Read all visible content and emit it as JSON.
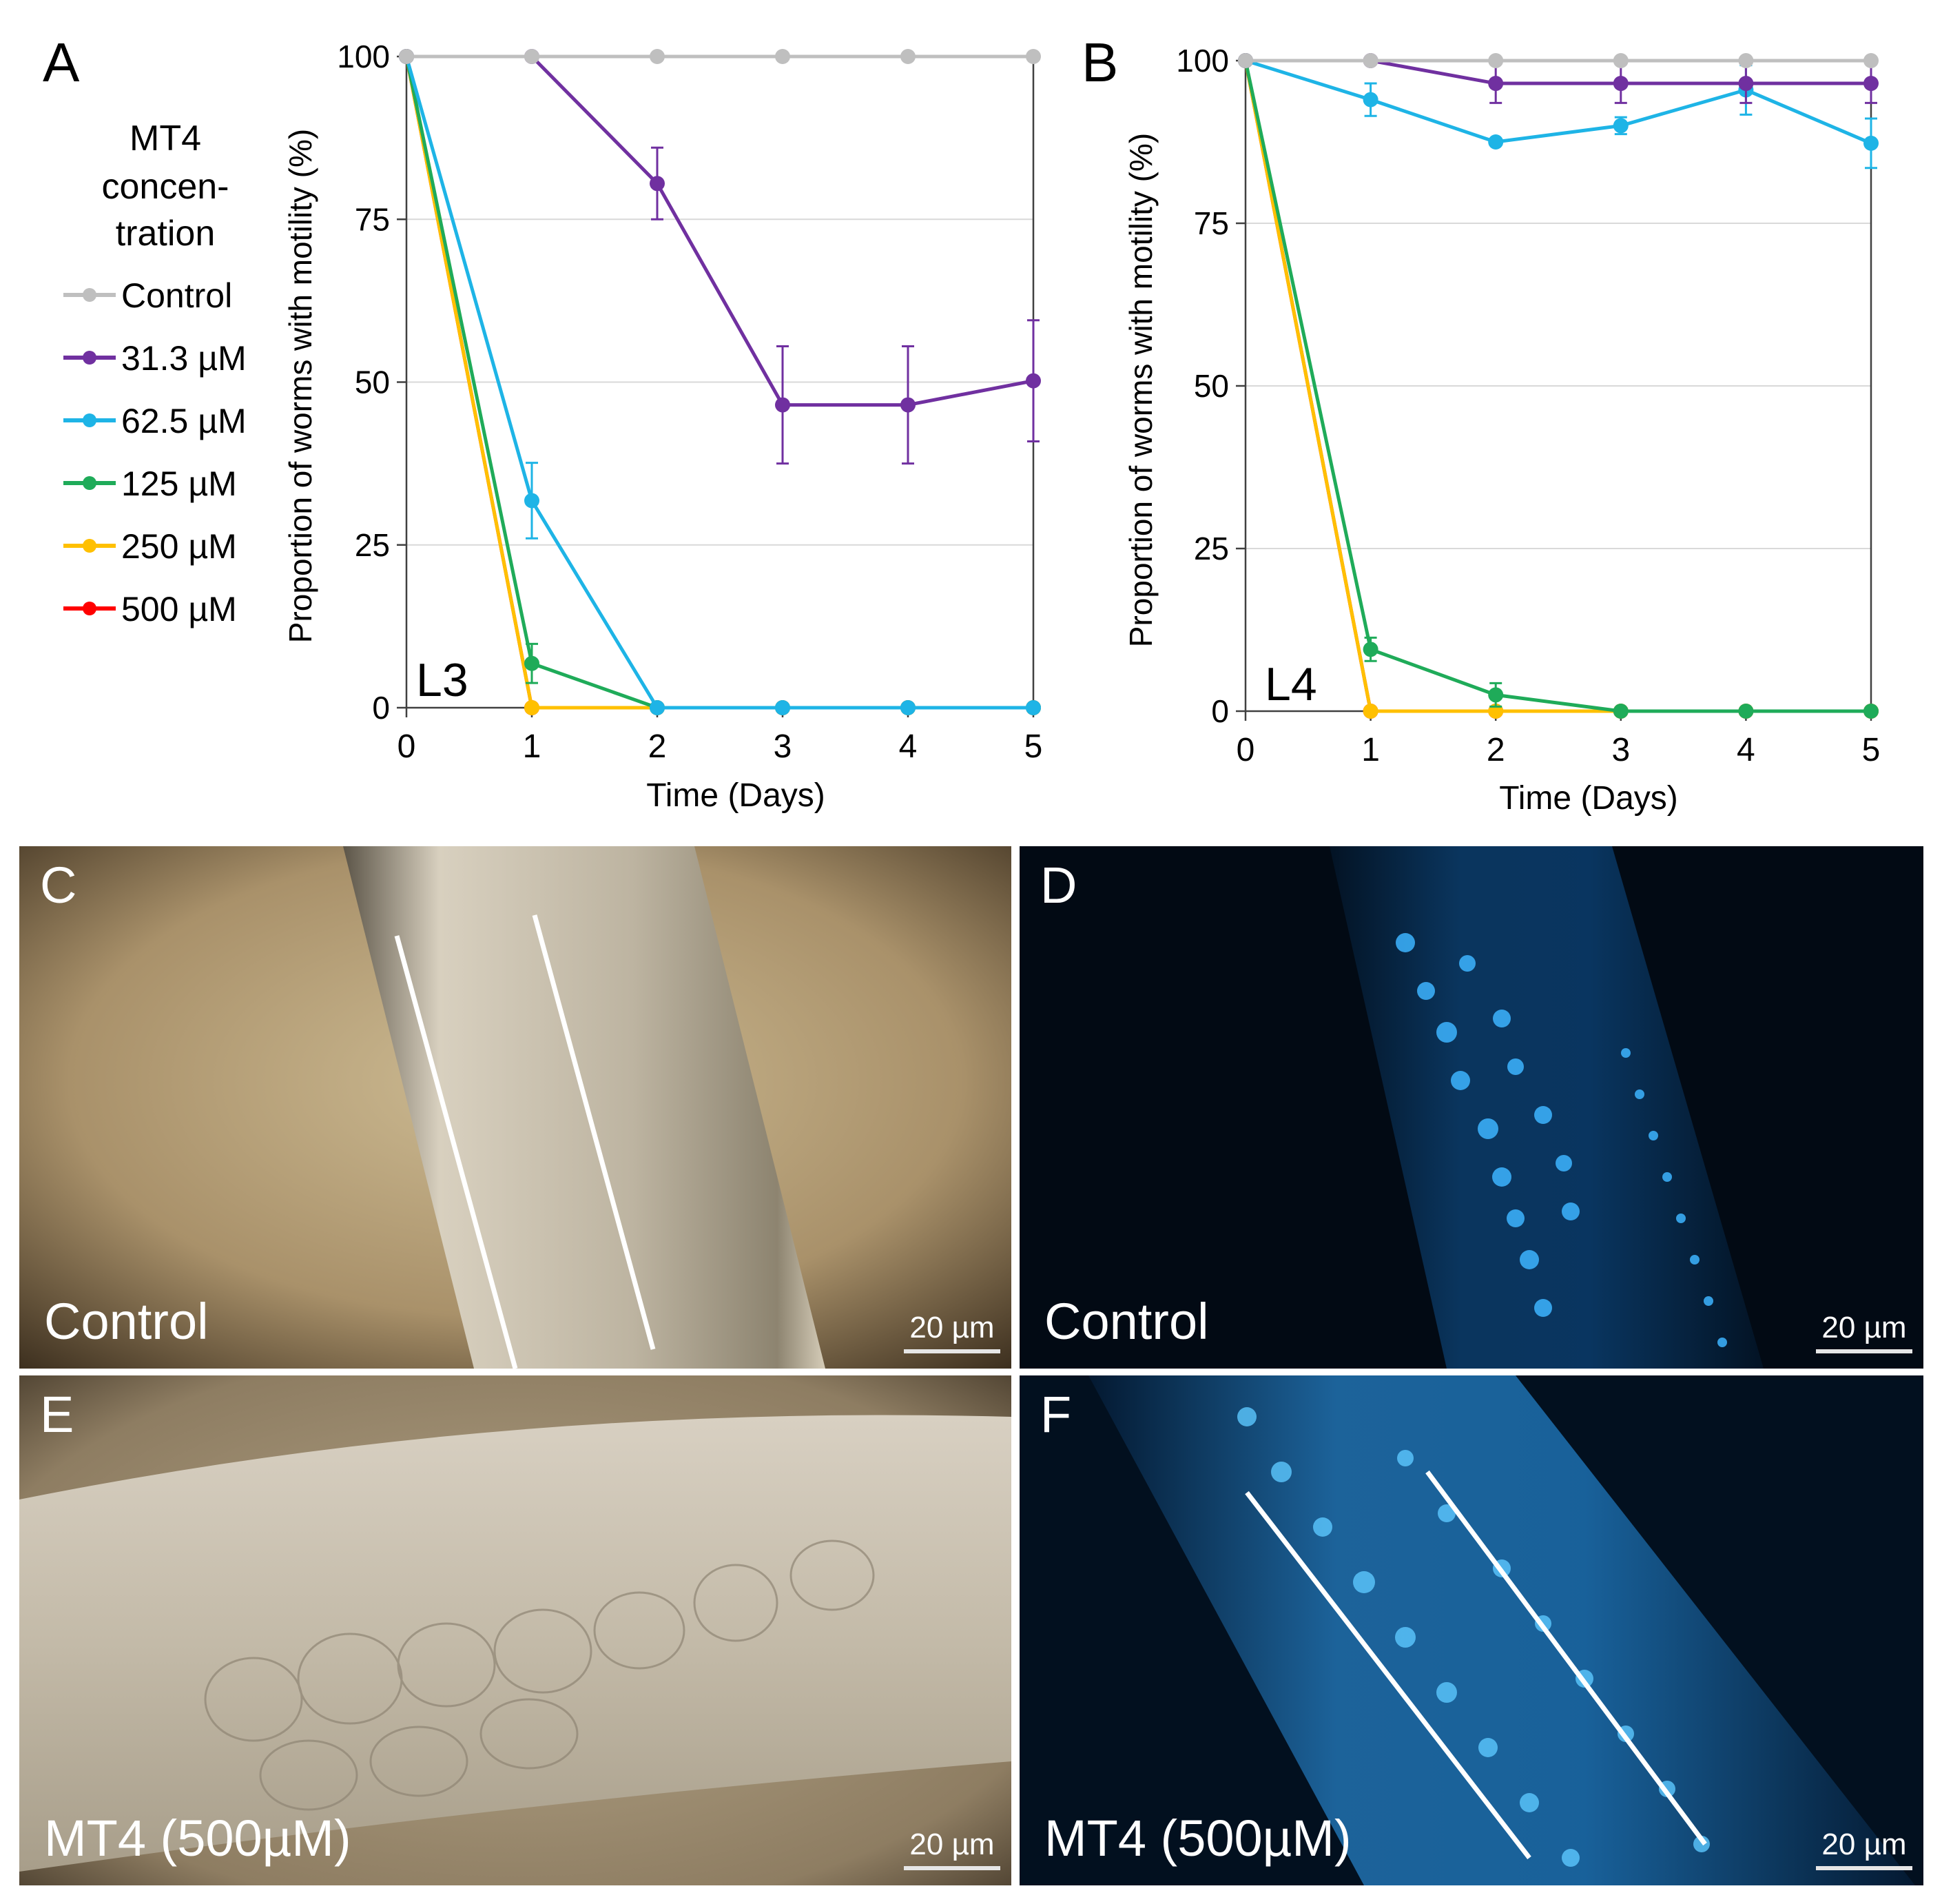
{
  "legend": {
    "title_lines": [
      "MT4",
      "concen-",
      "tration"
    ],
    "entries": [
      {
        "label": "Control",
        "color": "#bfbfbf"
      },
      {
        "label": "31.3 µM",
        "color": "#7030a0"
      },
      {
        "label": "62.5 µM",
        "color": "#1eb4e6"
      },
      {
        "label": "125 µM",
        "color": "#1fab59"
      },
      {
        "label": "250 µM",
        "color": "#ffc000"
      },
      {
        "label": "500 µM",
        "color": "#ff0000"
      }
    ]
  },
  "chart_data": [
    {
      "type": "line",
      "panel_letter": "A",
      "stage_label": "L3",
      "xlabel": "Time (Days)",
      "ylabel": "Proportion of worms with motility (%)",
      "x": [
        0,
        1,
        2,
        3,
        4,
        5
      ],
      "xlim": [
        0,
        5
      ],
      "ylim": [
        0,
        100
      ],
      "yticks": [
        0,
        25,
        50,
        75,
        100
      ],
      "grid": "horizontal",
      "series": [
        {
          "name": "Control",
          "color": "#bfbfbf",
          "values": [
            100,
            100,
            100,
            100,
            100,
            100
          ],
          "errors": [
            0,
            0,
            0,
            0,
            0,
            0
          ]
        },
        {
          "name": "31.3 µM",
          "color": "#7030a0",
          "values": [
            100,
            100,
            80.5,
            46.5,
            46.5,
            50.2
          ],
          "errors": [
            0,
            0,
            5.5,
            9,
            9,
            9.3
          ]
        },
        {
          "name": "62.5 µM",
          "color": "#1eb4e6",
          "values": [
            100,
            31.8,
            0,
            0,
            0,
            0
          ],
          "errors": [
            0,
            5.8,
            0,
            0,
            0,
            0
          ]
        },
        {
          "name": "125 µM",
          "color": "#1fab59",
          "values": [
            100,
            6.8,
            0,
            0,
            0,
            0
          ],
          "errors": [
            0,
            3,
            0,
            0,
            0,
            0
          ]
        },
        {
          "name": "250 µM",
          "color": "#ffc000",
          "values": [
            100,
            0,
            0,
            0,
            0,
            0
          ],
          "errors": [
            0,
            0,
            0,
            0,
            0,
            0
          ]
        },
        {
          "name": "500 µM",
          "color": "#ff0000",
          "values": [
            100,
            0,
            0,
            0,
            0,
            0
          ],
          "errors": [
            0,
            0,
            0,
            0,
            0,
            0
          ]
        }
      ]
    },
    {
      "type": "line",
      "panel_letter": "B",
      "stage_label": "L4",
      "xlabel": "Time (Days)",
      "ylabel": "Proportion of worms with motility (%)",
      "x": [
        0,
        1,
        2,
        3,
        4,
        5
      ],
      "xlim": [
        0,
        5
      ],
      "ylim": [
        0,
        100
      ],
      "yticks": [
        0,
        25,
        50,
        75,
        100
      ],
      "grid": "horizontal",
      "series": [
        {
          "name": "Control",
          "color": "#bfbfbf",
          "values": [
            100,
            100,
            100,
            100,
            100,
            100
          ],
          "errors": [
            0,
            0,
            0,
            0,
            0,
            0
          ]
        },
        {
          "name": "31.3 µM",
          "color": "#7030a0",
          "values": [
            100,
            100,
            96.5,
            96.5,
            96.5,
            96.5
          ],
          "errors": [
            0,
            0,
            3,
            3,
            3,
            3
          ]
        },
        {
          "name": "62.5 µM",
          "color": "#1eb4e6",
          "values": [
            100,
            94,
            87.5,
            90,
            95.5,
            87.3
          ],
          "errors": [
            0,
            2.5,
            0,
            1.3,
            3.8,
            3.8
          ]
        },
        {
          "name": "125 µM",
          "color": "#1fab59",
          "values": [
            100,
            9.5,
            2.5,
            0,
            0,
            0
          ],
          "errors": [
            0,
            1.8,
            1.8,
            0,
            0,
            0
          ]
        },
        {
          "name": "250 µM",
          "color": "#ffc000",
          "values": [
            100,
            0,
            0,
            0,
            0,
            0
          ],
          "errors": [
            0,
            0,
            0,
            0,
            0,
            0
          ]
        },
        {
          "name": "500 µM",
          "color": "#ff0000",
          "values": [
            100,
            0,
            0,
            0,
            0,
            0
          ],
          "errors": [
            0,
            0,
            0,
            0,
            0,
            0
          ]
        }
      ]
    }
  ],
  "micrographs": [
    {
      "letter": "C",
      "caption": "Control",
      "scale": "20 µm"
    },
    {
      "letter": "D",
      "caption": "Control",
      "scale": "20 µm"
    },
    {
      "letter": "E",
      "caption": "MT4 (500µM)",
      "scale": "20 µm"
    },
    {
      "letter": "F",
      "caption": "MT4 (500µM)",
      "scale": "20 µm"
    }
  ]
}
